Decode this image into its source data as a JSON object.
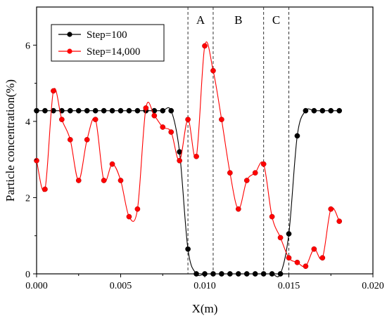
{
  "chart_data": {
    "type": "line",
    "xlabel": "X(m)",
    "ylabel": "Particle concentration(%)",
    "xlim": [
      0.0,
      0.02
    ],
    "ylim": [
      0,
      7
    ],
    "xticks": [
      "0.000",
      "0.005",
      "0.010",
      "0.015",
      "0.020"
    ],
    "xtick_values": [
      0.0,
      0.005,
      0.01,
      0.015,
      0.02
    ],
    "yticks": [
      "0",
      "2",
      "4",
      "6"
    ],
    "ytick_values": [
      0,
      2,
      4,
      6
    ],
    "legend_position": "top-left",
    "region_boundaries": [
      0.009,
      0.0105,
      0.0135,
      0.015
    ],
    "regions": [
      {
        "label": "A",
        "x": 0.00975
      },
      {
        "label": "B",
        "x": 0.012
      },
      {
        "label": "C",
        "x": 0.01425
      }
    ],
    "series": [
      {
        "name": "Step=100",
        "color": "#000000",
        "marker": "black-dot",
        "points": [
          [
            0.0,
            4.28
          ],
          [
            0.0005,
            4.28
          ],
          [
            0.001,
            4.28
          ],
          [
            0.0015,
            4.28
          ],
          [
            0.002,
            4.28
          ],
          [
            0.0025,
            4.28
          ],
          [
            0.003,
            4.28
          ],
          [
            0.0035,
            4.28
          ],
          [
            0.004,
            4.28
          ],
          [
            0.0045,
            4.28
          ],
          [
            0.005,
            4.28
          ],
          [
            0.0055,
            4.28
          ],
          [
            0.006,
            4.28
          ],
          [
            0.0065,
            4.28
          ],
          [
            0.007,
            4.28
          ],
          [
            0.0075,
            4.28
          ],
          [
            0.008,
            4.28
          ],
          [
            0.0085,
            3.2
          ],
          [
            0.009,
            0.65
          ],
          [
            0.0095,
            0.0
          ],
          [
            0.01,
            0.0
          ],
          [
            0.0105,
            0.0
          ],
          [
            0.011,
            0.0
          ],
          [
            0.0115,
            0.0
          ],
          [
            0.012,
            0.0
          ],
          [
            0.0125,
            0.0
          ],
          [
            0.013,
            0.0
          ],
          [
            0.0135,
            0.0
          ],
          [
            0.014,
            0.0
          ],
          [
            0.0145,
            0.0
          ],
          [
            0.015,
            1.05
          ],
          [
            0.0155,
            3.62
          ],
          [
            0.016,
            4.28
          ],
          [
            0.0165,
            4.28
          ],
          [
            0.017,
            4.28
          ],
          [
            0.0175,
            4.28
          ],
          [
            0.018,
            4.28
          ]
        ]
      },
      {
        "name": "Step=14,000",
        "color": "#ff0000",
        "marker": "red-dot",
        "points": [
          [
            0.0,
            2.97
          ],
          [
            0.0005,
            2.22
          ],
          [
            0.001,
            4.8
          ],
          [
            0.0015,
            4.05
          ],
          [
            0.002,
            3.52
          ],
          [
            0.0025,
            2.45
          ],
          [
            0.003,
            3.52
          ],
          [
            0.0035,
            4.05
          ],
          [
            0.004,
            2.45
          ],
          [
            0.0045,
            2.88
          ],
          [
            0.005,
            2.45
          ],
          [
            0.0055,
            1.5
          ],
          [
            0.006,
            1.7
          ],
          [
            0.0065,
            4.35
          ],
          [
            0.007,
            4.15
          ],
          [
            0.0075,
            3.85
          ],
          [
            0.008,
            3.72
          ],
          [
            0.0085,
            2.97
          ],
          [
            0.009,
            4.05
          ],
          [
            0.0095,
            3.08
          ],
          [
            0.01,
            5.98
          ],
          [
            0.0105,
            5.33
          ],
          [
            0.011,
            4.05
          ],
          [
            0.0115,
            2.65
          ],
          [
            0.012,
            1.7
          ],
          [
            0.0125,
            2.45
          ],
          [
            0.013,
            2.65
          ],
          [
            0.0135,
            2.88
          ],
          [
            0.014,
            1.5
          ],
          [
            0.0145,
            0.95
          ],
          [
            0.015,
            0.42
          ],
          [
            0.0155,
            0.3
          ],
          [
            0.016,
            0.2
          ],
          [
            0.0165,
            0.65
          ],
          [
            0.017,
            0.42
          ],
          [
            0.0175,
            1.7
          ],
          [
            0.018,
            1.38
          ]
        ]
      }
    ]
  }
}
